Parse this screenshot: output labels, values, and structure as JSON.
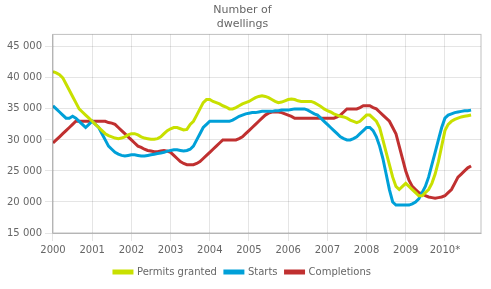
{
  "chart_data": {
    "type": "line",
    "title": "Number of\ndwellings",
    "x": [
      2000.0,
      2000.083,
      2000.167,
      2000.25,
      2000.333,
      2000.417,
      2000.5,
      2000.583,
      2000.667,
      2000.75,
      2000.833,
      2000.917,
      2001.0,
      2001.083,
      2001.167,
      2001.25,
      2001.333,
      2001.417,
      2001.5,
      2001.583,
      2001.667,
      2001.75,
      2001.833,
      2001.917,
      2002.0,
      2002.083,
      2002.167,
      2002.25,
      2002.333,
      2002.417,
      2002.5,
      2002.583,
      2002.667,
      2002.75,
      2002.833,
      2002.917,
      2003.0,
      2003.083,
      2003.167,
      2003.25,
      2003.333,
      2003.417,
      2003.5,
      2003.583,
      2003.667,
      2003.75,
      2003.833,
      2003.917,
      2004.0,
      2004.083,
      2004.167,
      2004.25,
      2004.333,
      2004.417,
      2004.5,
      2004.583,
      2004.667,
      2004.75,
      2004.833,
      2004.917,
      2005.0,
      2005.083,
      2005.167,
      2005.25,
      2005.333,
      2005.417,
      2005.5,
      2005.583,
      2005.667,
      2005.75,
      2005.833,
      2005.917,
      2006.0,
      2006.083,
      2006.167,
      2006.25,
      2006.333,
      2006.417,
      2006.5,
      2006.583,
      2006.667,
      2006.75,
      2006.833,
      2006.917,
      2007.0,
      2007.083,
      2007.167,
      2007.25,
      2007.333,
      2007.417,
      2007.5,
      2007.583,
      2007.667,
      2007.75,
      2007.833,
      2007.917,
      2008.0,
      2008.083,
      2008.167,
      2008.25,
      2008.333,
      2008.417,
      2008.5,
      2008.583,
      2008.667,
      2008.75,
      2008.833,
      2008.917,
      2009.0,
      2009.083,
      2009.167,
      2009.25,
      2009.333,
      2009.417,
      2009.5,
      2009.583,
      2009.667,
      2009.75,
      2009.833,
      2009.917,
      2010.0,
      2010.083,
      2010.167,
      2010.25,
      2010.333,
      2010.417,
      2010.5,
      2010.583,
      2010.667
    ],
    "series": [
      {
        "name": "Permits granted",
        "color": "#c8e000",
        "values": [
          41000,
          40800,
          40500,
          40000,
          39000,
          38000,
          37000,
          36000,
          35000,
          34500,
          34000,
          33500,
          33000,
          32500,
          32000,
          31500,
          31000,
          30700,
          30500,
          30300,
          30200,
          30300,
          30500,
          30800,
          31000,
          31000,
          30800,
          30500,
          30300,
          30200,
          30100,
          30100,
          30200,
          30500,
          31000,
          31500,
          31800,
          32000,
          32000,
          31800,
          31600,
          31700,
          32500,
          33000,
          34000,
          35000,
          36000,
          36500,
          36500,
          36200,
          36000,
          35800,
          35500,
          35300,
          35000,
          35000,
          35200,
          35500,
          35800,
          36000,
          36200,
          36500,
          36800,
          37000,
          37100,
          37000,
          36800,
          36500,
          36200,
          36000,
          36100,
          36300,
          36500,
          36600,
          36500,
          36300,
          36200,
          36200,
          36200,
          36200,
          36000,
          35700,
          35400,
          35000,
          34700,
          34500,
          34200,
          34000,
          33800,
          33700,
          33500,
          33200,
          33000,
          32800,
          33000,
          33500,
          34000,
          34000,
          33500,
          33000,
          32000,
          30000,
          28000,
          26000,
          24000,
          22500,
          22000,
          22500,
          23000,
          22500,
          22000,
          21500,
          21000,
          21000,
          21500,
          22000,
          23000,
          24500,
          26500,
          29000,
          31500,
          32500,
          33000,
          33300,
          33500,
          33700,
          33800,
          33900,
          34000
        ]
      },
      {
        "name": "Starts",
        "color": "#00a0d8",
        "values": [
          35500,
          35000,
          34500,
          34000,
          33500,
          33500,
          33800,
          33500,
          33000,
          32500,
          32000,
          32500,
          33000,
          32500,
          32000,
          31000,
          30000,
          29000,
          28500,
          28000,
          27700,
          27500,
          27400,
          27500,
          27600,
          27600,
          27500,
          27400,
          27400,
          27500,
          27600,
          27700,
          27800,
          27900,
          28000,
          28200,
          28300,
          28400,
          28400,
          28300,
          28200,
          28300,
          28500,
          29000,
          30000,
          31000,
          32000,
          32500,
          33000,
          33000,
          33000,
          33000,
          33000,
          33000,
          33000,
          33200,
          33500,
          33800,
          34000,
          34200,
          34300,
          34400,
          34400,
          34500,
          34600,
          34600,
          34600,
          34600,
          34700,
          34700,
          34800,
          34800,
          34800,
          34900,
          35000,
          35000,
          35000,
          35000,
          34800,
          34500,
          34200,
          34000,
          33500,
          33000,
          32500,
          32000,
          31500,
          31000,
          30500,
          30200,
          30000,
          30000,
          30200,
          30500,
          31000,
          31500,
          32000,
          32000,
          31500,
          30500,
          29000,
          27000,
          24500,
          22000,
          20000,
          19500,
          19500,
          19500,
          19500,
          19500,
          19700,
          20000,
          20500,
          21500,
          22500,
          24000,
          26000,
          28000,
          30000,
          32000,
          33500,
          34000,
          34200,
          34400,
          34500,
          34600,
          34700,
          34700,
          34800
        ]
      },
      {
        "name": "Completions",
        "color": "#c03030",
        "values": [
          29500,
          30000,
          30500,
          31000,
          31500,
          32000,
          32500,
          33000,
          33000,
          33000,
          33000,
          33000,
          33000,
          33000,
          33000,
          33000,
          33000,
          32800,
          32700,
          32500,
          32000,
          31500,
          31000,
          30500,
          30000,
          29500,
          29000,
          28800,
          28500,
          28300,
          28200,
          28100,
          28100,
          28200,
          28300,
          28200,
          28000,
          27500,
          27000,
          26500,
          26200,
          26000,
          26000,
          26000,
          26200,
          26500,
          27000,
          27500,
          28000,
          28500,
          29000,
          29500,
          30000,
          30000,
          30000,
          30000,
          30000,
          30200,
          30500,
          31000,
          31500,
          32000,
          32500,
          33000,
          33500,
          34000,
          34300,
          34500,
          34500,
          34500,
          34400,
          34200,
          34000,
          33800,
          33500,
          33500,
          33500,
          33500,
          33500,
          33500,
          33500,
          33500,
          33500,
          33500,
          33500,
          33500,
          33500,
          33700,
          34000,
          34500,
          35000,
          35000,
          35000,
          35000,
          35200,
          35500,
          35500,
          35500,
          35200,
          35000,
          34500,
          34000,
          33500,
          33000,
          32000,
          31000,
          29000,
          27000,
          25000,
          23500,
          22500,
          22000,
          21500,
          21300,
          21000,
          20800,
          20700,
          20600,
          20700,
          20800,
          21000,
          21500,
          22000,
          23000,
          24000,
          24500,
          25000,
          25500,
          25800
        ]
      }
    ],
    "xlim": [
      2000,
      2010.92
    ],
    "xticks": [
      2000,
      2001,
      2002,
      2003,
      2004,
      2005,
      2006,
      2007,
      2008,
      2009,
      {
        "value": 2010,
        "label": "2010*"
      }
    ],
    "ylim": [
      15000,
      47000
    ],
    "yticks": [
      {
        "value": 15000,
        "label": "15 000"
      },
      {
        "value": 20000,
        "label": "20 000"
      },
      {
        "value": 25000,
        "label": "25 000"
      },
      {
        "value": 30000,
        "label": "30 000"
      },
      {
        "value": 35000,
        "label": "35 000"
      },
      {
        "value": 40000,
        "label": "40 000"
      },
      {
        "value": 45000,
        "label": "45 000"
      }
    ],
    "grid": true,
    "legend": "bottom"
  }
}
